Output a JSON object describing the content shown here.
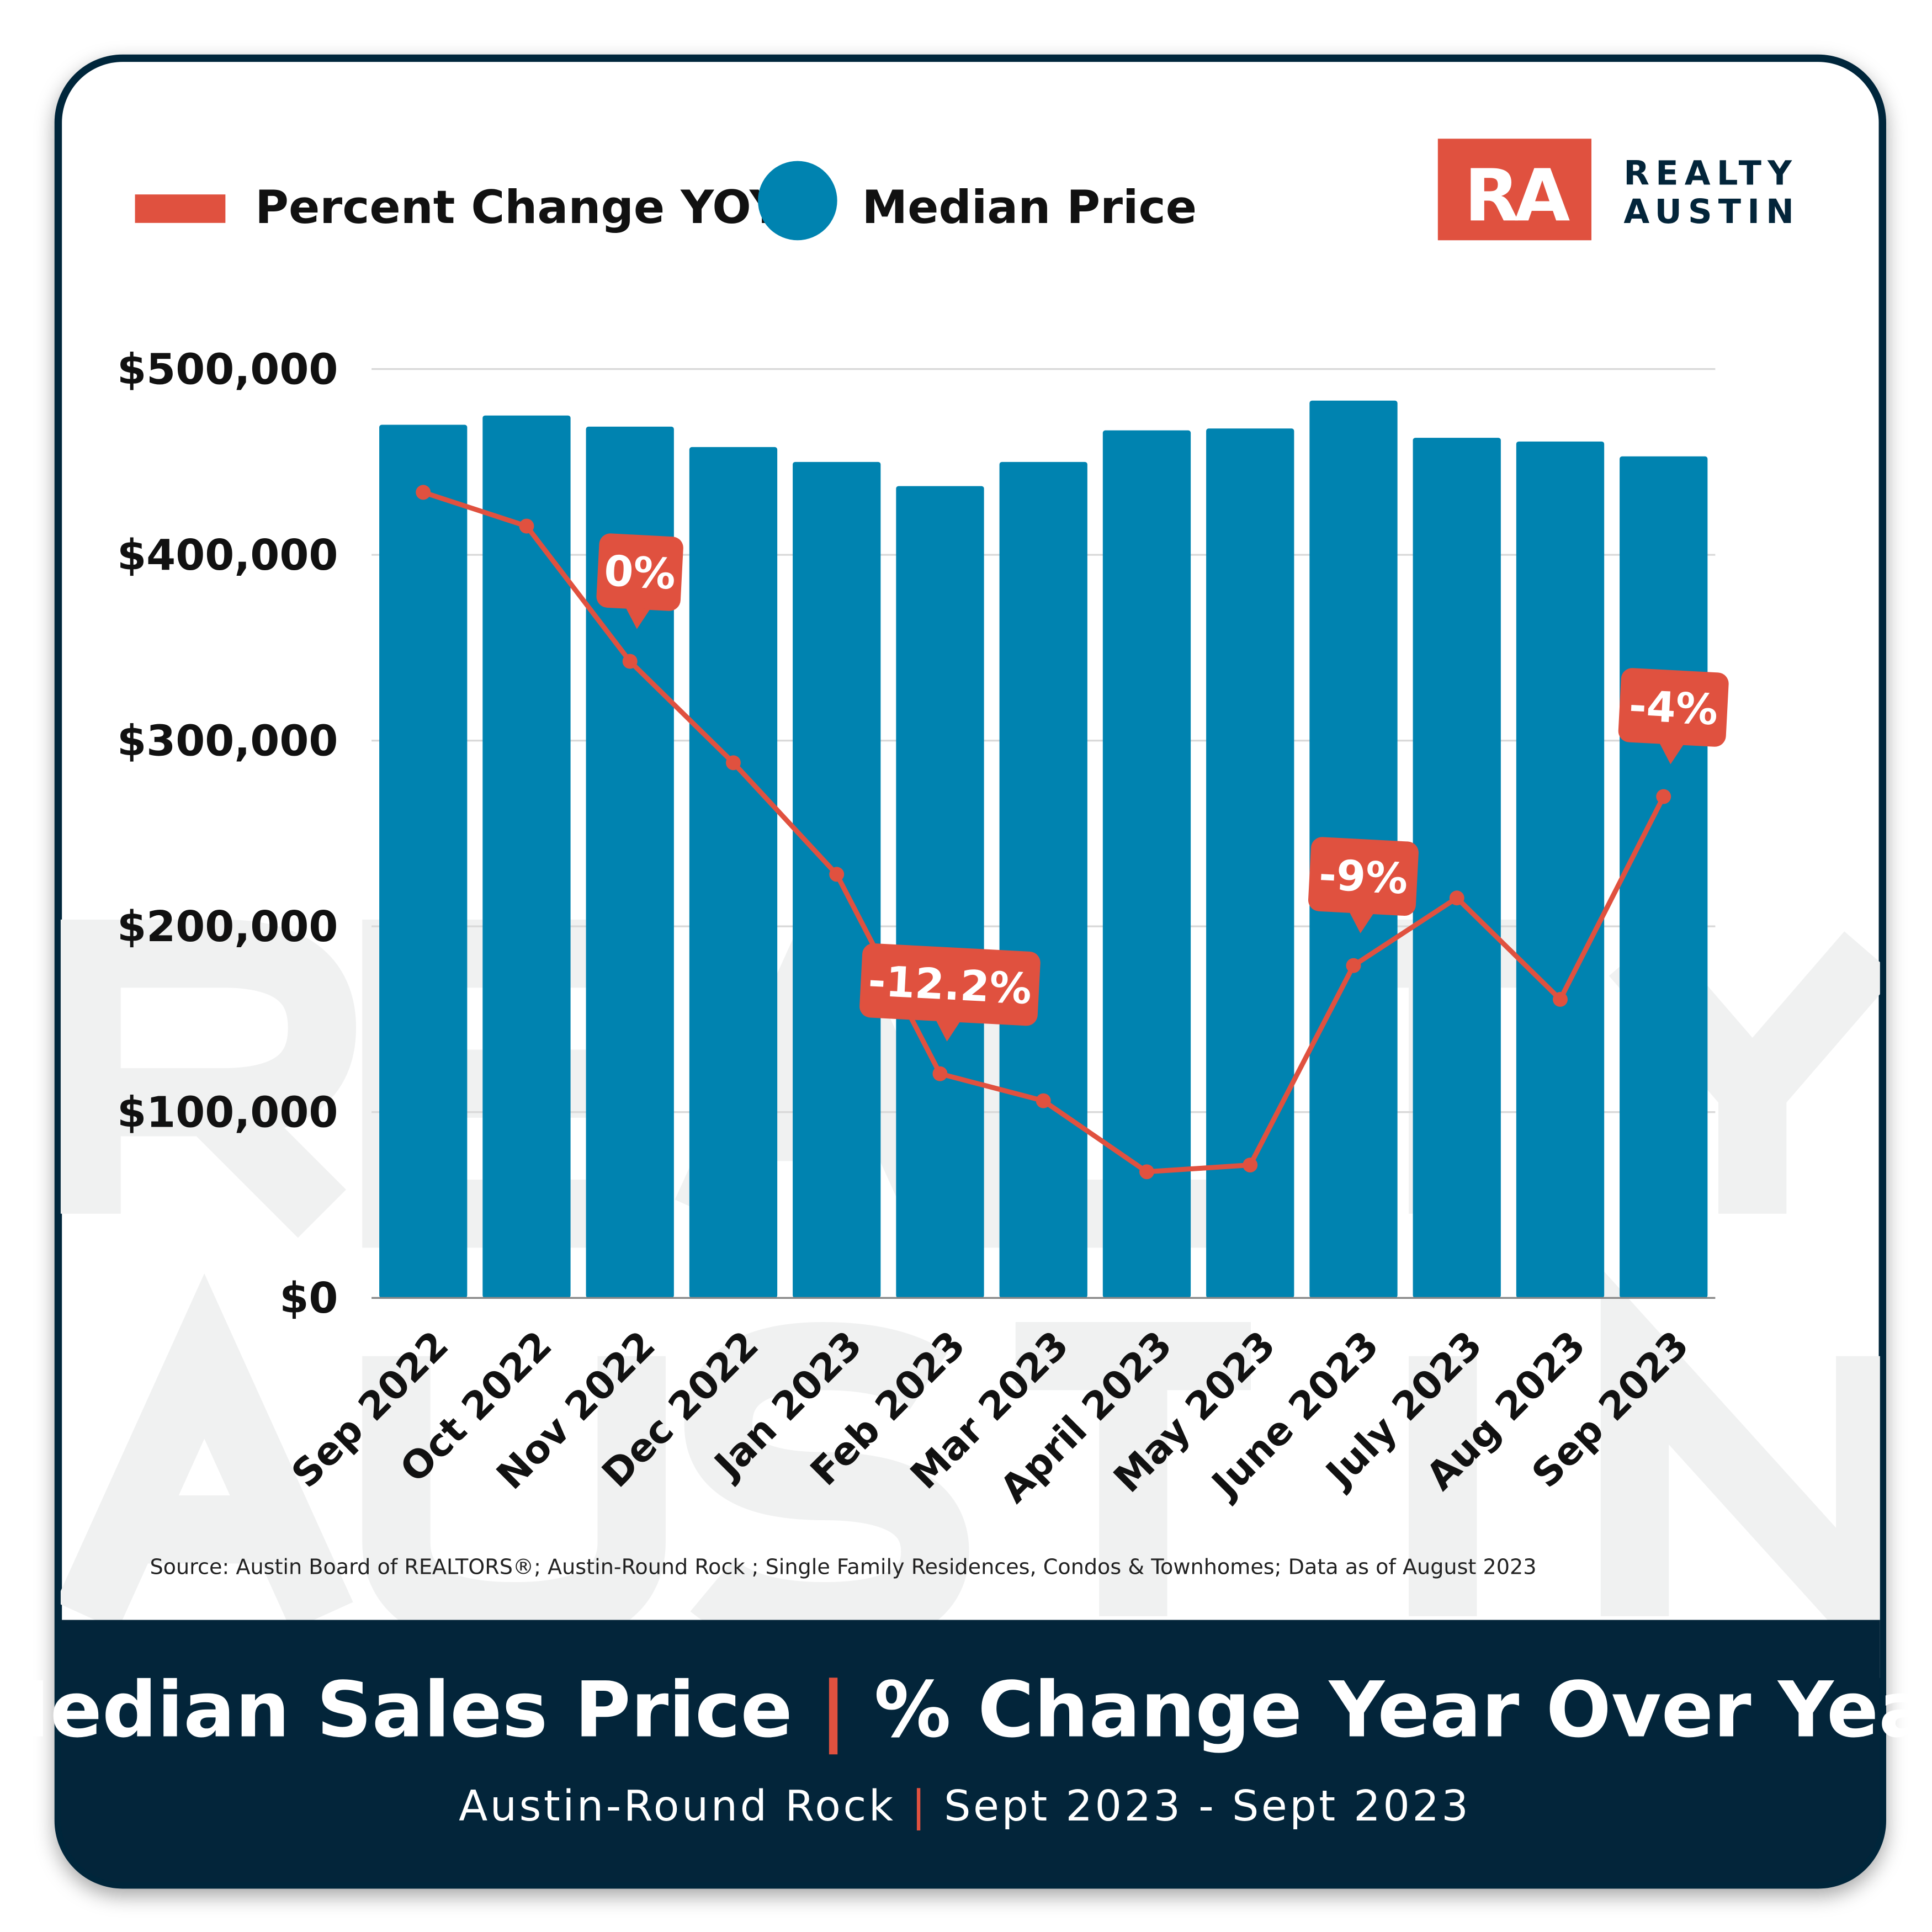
{
  "legend": {
    "line_label": "Percent Change YOY",
    "bar_label": "Median Price"
  },
  "logo": {
    "mark": "RA",
    "line1": "REALTY",
    "line2": "AUSTIN"
  },
  "watermark": {
    "line1": "REALTY",
    "line2": "AUSTIN"
  },
  "source": "Source: Austin Board of REALTORS®; Austin-Round Rock ; Single Family Residences, Condos & Townhomes; Data as of August 2023",
  "footer": {
    "title_left": "Median Sales Price",
    "separator": "|",
    "title_right": "% Change Year Over Year",
    "subtitle_left": "Austin-Round Rock",
    "subtitle_right": "Sept 2023 - Sept 2023"
  },
  "colors": {
    "bar": "#0083B0",
    "line": "#E0513F",
    "navy": "#03253A",
    "grid": "#D9D9D9",
    "watermark": "#F0F1F1"
  },
  "chart_data": {
    "type": "bar+line",
    "categories": [
      "Sep 2022",
      "Oct 2022",
      "Nov 2022",
      "Dec 2022",
      "Jan 2023",
      "Feb 2023",
      "Mar 2023",
      "April 2023",
      "May 2023",
      "June 2023",
      "July 2023",
      "Aug 2023",
      "Sep 2023"
    ],
    "series": [
      {
        "name": "Median Price",
        "type": "bar",
        "values": [
          470000,
          475000,
          469000,
          458000,
          450000,
          437000,
          450000,
          467000,
          468000,
          483000,
          463000,
          461000,
          453000
        ]
      },
      {
        "name": "Percent Change YOY",
        "type": "line",
        "values": [
          5.0,
          4.0,
          0,
          -3.0,
          -6.3,
          -12.2,
          -13.0,
          -15.1,
          -14.9,
          -9.0,
          -7.0,
          -10.0,
          -4.0
        ]
      }
    ],
    "callouts": [
      {
        "index": 2,
        "text": "0%"
      },
      {
        "index": 5,
        "text": "-12.2%"
      },
      {
        "index": 9,
        "text": "-9%"
      },
      {
        "index": 12,
        "text": "-4%"
      }
    ],
    "y_ticks": [
      "$0",
      "$100,000",
      "$200,000",
      "$300,000",
      "$400,000",
      "$500,000"
    ],
    "ylim": [
      0,
      500000
    ],
    "grid": true,
    "legend_position": "top-left"
  }
}
